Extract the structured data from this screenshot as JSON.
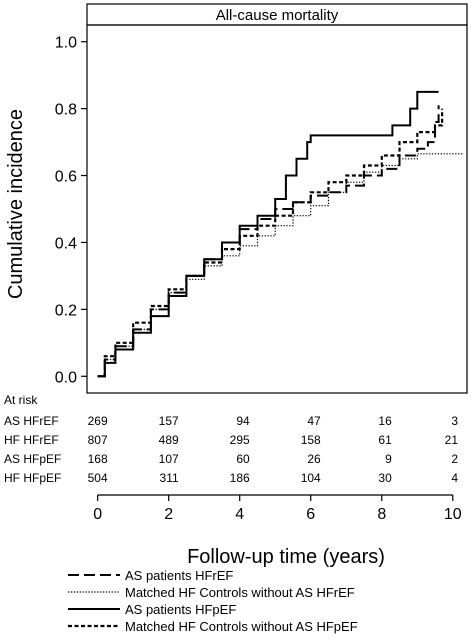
{
  "chart_data": {
    "type": "line",
    "title": "All-cause mortality",
    "xlabel": "Follow-up time (years)",
    "ylabel": "Cumulative incidence",
    "xlim": [
      -0.3,
      10.4
    ],
    "ylim": [
      -0.05,
      1.05
    ],
    "xticks": [
      0,
      2,
      4,
      6,
      8,
      10
    ],
    "yticks": [
      0.0,
      0.2,
      0.4,
      0.6,
      0.8,
      1.0
    ],
    "ytick_labels": [
      "0.0",
      "0.2",
      "0.4",
      "0.6",
      "0.8",
      "1.0"
    ],
    "grid": false,
    "series": [
      {
        "name": "AS patients HFrEF",
        "dash": "long-dash",
        "points": [
          [
            0,
            0
          ],
          [
            0.2,
            0.05
          ],
          [
            0.5,
            0.09
          ],
          [
            1,
            0.14
          ],
          [
            1.5,
            0.2
          ],
          [
            2,
            0.25
          ],
          [
            2.5,
            0.3
          ],
          [
            3,
            0.35
          ],
          [
            3.5,
            0.4
          ],
          [
            4,
            0.44
          ],
          [
            4.5,
            0.47
          ],
          [
            5,
            0.5
          ],
          [
            5.5,
            0.52
          ],
          [
            6,
            0.54
          ],
          [
            6.5,
            0.55
          ],
          [
            7,
            0.57
          ],
          [
            7.5,
            0.6
          ],
          [
            8,
            0.62
          ],
          [
            8.5,
            0.66
          ],
          [
            9,
            0.68
          ],
          [
            9.3,
            0.7
          ],
          [
            9.5,
            0.76
          ],
          [
            9.6,
            0.81
          ]
        ]
      },
      {
        "name": "Matched HF Controls without AS HFrEF",
        "dash": "dotted",
        "points": [
          [
            0,
            0
          ],
          [
            0.2,
            0.05
          ],
          [
            0.5,
            0.09
          ],
          [
            1,
            0.14
          ],
          [
            1.5,
            0.2
          ],
          [
            2,
            0.25
          ],
          [
            2.5,
            0.29
          ],
          [
            3,
            0.33
          ],
          [
            3.5,
            0.36
          ],
          [
            4,
            0.39
          ],
          [
            4.5,
            0.42
          ],
          [
            5,
            0.45
          ],
          [
            5.5,
            0.48
          ],
          [
            6,
            0.51
          ],
          [
            6.5,
            0.55
          ],
          [
            7,
            0.58
          ],
          [
            7.5,
            0.61
          ],
          [
            8,
            0.63
          ],
          [
            8.5,
            0.65
          ],
          [
            9,
            0.665
          ],
          [
            9.5,
            0.665
          ],
          [
            10.3,
            0.665
          ]
        ]
      },
      {
        "name": "AS patients HFpEF",
        "dash": "solid",
        "points": [
          [
            0,
            0
          ],
          [
            0.2,
            0.04
          ],
          [
            0.5,
            0.08
          ],
          [
            1,
            0.13
          ],
          [
            1.5,
            0.18
          ],
          [
            2,
            0.24
          ],
          [
            2.5,
            0.3
          ],
          [
            3,
            0.35
          ],
          [
            3.5,
            0.4
          ],
          [
            4,
            0.45
          ],
          [
            4.5,
            0.48
          ],
          [
            5,
            0.53
          ],
          [
            5.3,
            0.6
          ],
          [
            5.6,
            0.65
          ],
          [
            5.9,
            0.7
          ],
          [
            6,
            0.72
          ],
          [
            8,
            0.72
          ],
          [
            8.3,
            0.75
          ],
          [
            8.8,
            0.8
          ],
          [
            9,
            0.85
          ],
          [
            9.6,
            0.85
          ]
        ]
      },
      {
        "name": "Matched HF Controls without AS HFpEF",
        "dash": "short-dash",
        "points": [
          [
            0,
            0
          ],
          [
            0.2,
            0.06
          ],
          [
            0.5,
            0.1
          ],
          [
            1,
            0.16
          ],
          [
            1.5,
            0.21
          ],
          [
            2,
            0.26
          ],
          [
            2.5,
            0.3
          ],
          [
            3,
            0.34
          ],
          [
            3.5,
            0.38
          ],
          [
            4,
            0.42
          ],
          [
            4.5,
            0.45
          ],
          [
            5,
            0.48
          ],
          [
            5.5,
            0.52
          ],
          [
            6,
            0.55
          ],
          [
            6.5,
            0.58
          ],
          [
            7,
            0.6
          ],
          [
            7.5,
            0.63
          ],
          [
            8,
            0.66
          ],
          [
            8.5,
            0.7
          ],
          [
            9,
            0.73
          ],
          [
            9.5,
            0.75
          ],
          [
            9.7,
            0.8
          ]
        ]
      }
    ],
    "at_risk": {
      "heading": "At risk",
      "rows": [
        {
          "label": "AS HFrEF",
          "values": [
            "269",
            "157",
            "94",
            "47",
            "16",
            "3"
          ]
        },
        {
          "label": "HF HFrEF",
          "values": [
            "807",
            "489",
            "295",
            "158",
            "61",
            "21"
          ]
        },
        {
          "label": "AS HFpEF",
          "values": [
            "168",
            "107",
            "60",
            "26",
            "9",
            "2"
          ]
        },
        {
          "label": "HF HFpEF",
          "values": [
            "504",
            "311",
            "186",
            "104",
            "30",
            "4"
          ]
        }
      ]
    },
    "legend_placement": "bottom-center"
  }
}
